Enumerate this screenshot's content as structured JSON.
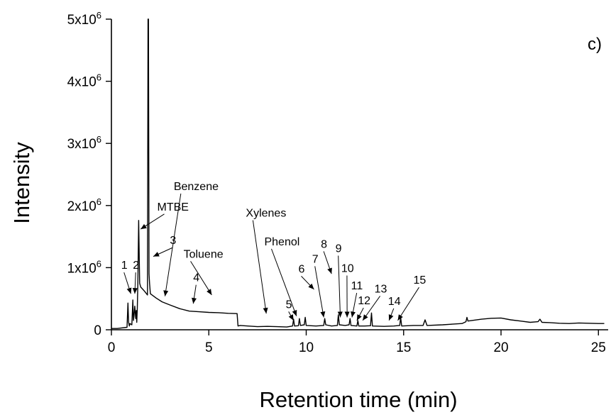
{
  "chart_data": {
    "type": "line",
    "xlabel": "Retention time  (min)",
    "ylabel": "Intensity",
    "panel_label": "c)",
    "xlim": [
      0,
      25.5
    ],
    "ylim": [
      0,
      5000000
    ],
    "x_ticks": [
      0,
      5,
      10,
      15,
      20,
      25
    ],
    "y_ticks": [
      {
        "value": 0,
        "base": "0",
        "exp": ""
      },
      {
        "value": 1000000,
        "base": "1x10",
        "exp": "6"
      },
      {
        "value": 2000000,
        "base": "2x10",
        "exp": "6"
      },
      {
        "value": 3000000,
        "base": "3x10",
        "exp": "6"
      },
      {
        "value": 4000000,
        "base": "4x10",
        "exp": "6"
      },
      {
        "value": 5000000,
        "base": "5x10",
        "exp": "6"
      }
    ],
    "grid": false,
    "series": [
      {
        "x": [
          0.0,
          0.3,
          0.8,
          0.85,
          0.88,
          0.92,
          0.95,
          1.05,
          1.1,
          1.13,
          1.16,
          1.2,
          1.25,
          1.28,
          1.3,
          1.33,
          1.36,
          1.4,
          1.45,
          1.5,
          1.7,
          1.85,
          1.88,
          1.9,
          1.93,
          1.96,
          2.0,
          2.3,
          2.6,
          3.0,
          3.5,
          4.0,
          4.5,
          5.0,
          5.5,
          6.0,
          6.45,
          6.5,
          6.6,
          7.0,
          7.5,
          8.0,
          8.5,
          9.0,
          9.3,
          9.35,
          9.4,
          9.6,
          9.65,
          9.7,
          9.9,
          9.95,
          10.0,
          10.5,
          10.9,
          10.95,
          11.0,
          11.3,
          11.6,
          11.65,
          11.7,
          12.0,
          12.2,
          12.25,
          12.3,
          12.6,
          12.65,
          12.7,
          13.0,
          13.3,
          13.35,
          13.4,
          14.0,
          14.5,
          14.8,
          14.85,
          14.9,
          15.5,
          16.0,
          16.1,
          16.2,
          17.0,
          17.5,
          18.0,
          18.2,
          18.25,
          18.3,
          18.5,
          19.0,
          19.5,
          20.0,
          20.5,
          21.0,
          21.5,
          21.9,
          22.0,
          22.1,
          22.5,
          23.0,
          23.5,
          24.0,
          24.5,
          25.0,
          25.3
        ],
        "y": [
          20000,
          20000,
          40000,
          430000,
          120000,
          60000,
          100000,
          80000,
          480000,
          150000,
          220000,
          380000,
          180000,
          310000,
          120000,
          350000,
          780000,
          1760000,
          750000,
          690000,
          620000,
          560000,
          5000000,
          5000000,
          900000,
          740000,
          580000,
          510000,
          450000,
          400000,
          340000,
          300000,
          290000,
          280000,
          275000,
          265000,
          260000,
          60000,
          70000,
          60000,
          50000,
          55000,
          50000,
          45000,
          60000,
          170000,
          60000,
          65000,
          180000,
          70000,
          80000,
          200000,
          70000,
          60000,
          70000,
          180000,
          80000,
          60000,
          70000,
          240000,
          80000,
          70000,
          80000,
          180000,
          70000,
          60000,
          150000,
          60000,
          60000,
          65000,
          270000,
          60000,
          55000,
          60000,
          70000,
          200000,
          60000,
          70000,
          70000,
          160000,
          70000,
          80000,
          90000,
          100000,
          130000,
          200000,
          140000,
          150000,
          170000,
          185000,
          190000,
          160000,
          140000,
          120000,
          130000,
          170000,
          120000,
          115000,
          105000,
          100000,
          110000,
          105000,
          100000,
          100000
        ]
      }
    ],
    "annotations": [
      {
        "text": "1",
        "x": 0.5,
        "y": 980000,
        "arrow_to": [
          1.0,
          580000
        ]
      },
      {
        "text": "2",
        "x": 1.1,
        "y": 980000,
        "arrow_to": [
          1.2,
          580000
        ]
      },
      {
        "text": "MTBE",
        "x": 2.35,
        "y": 1920000,
        "arrow_to": [
          1.5,
          1620000
        ]
      },
      {
        "text": "Benzene",
        "x": 3.2,
        "y": 2250000,
        "arrow_to": [
          2.75,
          540000
        ]
      },
      {
        "text": "3",
        "x": 3.0,
        "y": 1380000,
        "arrow_to": [
          2.15,
          1180000
        ]
      },
      {
        "text": "Toluene",
        "x": 3.7,
        "y": 1160000,
        "arrow_to": [
          5.15,
          560000
        ]
      },
      {
        "text": "4",
        "x": 4.2,
        "y": 780000,
        "arrow_to": [
          4.2,
          420000
        ]
      },
      {
        "text": "Xylenes",
        "x": 6.9,
        "y": 1820000,
        "arrow_to": [
          7.95,
          260000
        ]
      },
      {
        "text": "Phenol",
        "x": 7.85,
        "y": 1360000,
        "arrow_to": [
          9.5,
          220000
        ]
      },
      {
        "text": "5",
        "x": 8.95,
        "y": 350000,
        "arrow_to": [
          9.35,
          150000
        ]
      },
      {
        "text": "6",
        "x": 9.6,
        "y": 920000,
        "arrow_to": [
          10.4,
          650000
        ]
      },
      {
        "text": "7",
        "x": 10.3,
        "y": 1080000,
        "arrow_to": [
          10.9,
          200000
        ]
      },
      {
        "text": "8",
        "x": 10.75,
        "y": 1320000,
        "arrow_to": [
          11.3,
          900000
        ]
      },
      {
        "text": "9",
        "x": 11.5,
        "y": 1250000,
        "arrow_to": [
          11.75,
          200000
        ]
      },
      {
        "text": "10",
        "x": 11.8,
        "y": 930000,
        "arrow_to": [
          12.1,
          200000
        ]
      },
      {
        "text": "11",
        "x": 12.3,
        "y": 650000,
        "arrow_to": [
          12.35,
          200000
        ]
      },
      {
        "text": "12",
        "x": 12.65,
        "y": 410000,
        "arrow_to": [
          12.6,
          150000
        ]
      },
      {
        "text": "13",
        "x": 13.5,
        "y": 600000,
        "arrow_to": [
          12.9,
          150000
        ]
      },
      {
        "text": "14",
        "x": 14.2,
        "y": 400000,
        "arrow_to": [
          14.25,
          150000
        ]
      },
      {
        "text": "15",
        "x": 15.5,
        "y": 740000,
        "arrow_to": [
          14.7,
          150000
        ]
      }
    ]
  }
}
